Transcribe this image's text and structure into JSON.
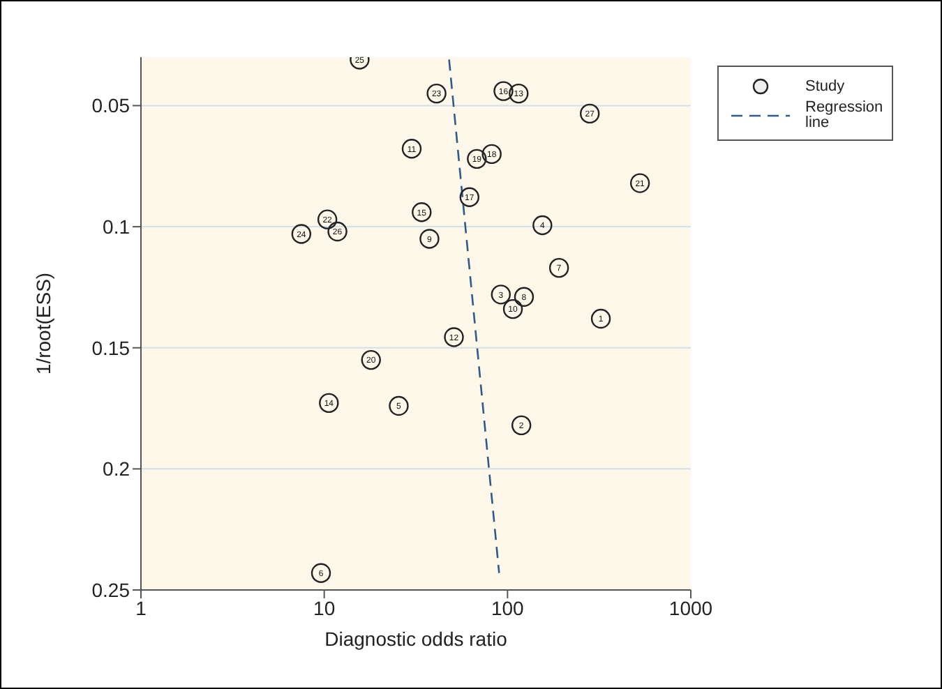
{
  "chart_data": {
    "type": "scatter",
    "xlabel": "Diagnostic odds ratio",
    "ylabel": "1/root(ESS)",
    "log": "x",
    "xlim": [
      1,
      1000
    ],
    "xticks": [
      1,
      10,
      100,
      1000
    ],
    "ylim": [
      0.25,
      0.03
    ],
    "yticks": [
      0.05,
      0.1,
      0.15,
      0.2,
      0.25
    ],
    "grid": "y",
    "legend": "top right",
    "marker": "circle",
    "series": [
      {
        "name": "Study",
        "color": "#222222",
        "x": [
          323,
          119,
          92,
          155,
          25.5,
          9.6,
          191,
          123,
          37.5,
          107,
          30,
          51,
          115,
          10.6,
          34,
          95,
          62,
          82,
          68,
          18,
          528,
          10.4,
          41,
          7.5,
          15.6,
          11.8,
          281
        ],
        "values": [
          0.138,
          0.182,
          0.128,
          0.0994,
          0.174,
          0.243,
          0.117,
          0.129,
          0.105,
          0.134,
          0.0678,
          0.1456,
          0.045,
          0.1728,
          0.094,
          0.044,
          0.0878,
          0.07,
          0.072,
          0.155,
          0.082,
          0.097,
          0.045,
          0.103,
          0.031,
          0.102,
          0.0533
        ]
      },
      {
        "name": "Regression line",
        "type": "line",
        "color": "#2e5b8a",
        "line_style": "dashed",
        "marker": "none",
        "x": [
          48,
          90
        ],
        "values": [
          0.031,
          0.243
        ]
      }
    ],
    "annotations": [
      {
        "text": "1",
        "x": 323,
        "y": 0.138
      },
      {
        "text": "2",
        "x": 119,
        "y": 0.182
      },
      {
        "text": "3",
        "x": 92,
        "y": 0.128
      },
      {
        "text": "4",
        "x": 155,
        "y": 0.0994
      },
      {
        "text": "5",
        "x": 25.5,
        "y": 0.174
      },
      {
        "text": "6",
        "x": 9.6,
        "y": 0.243
      },
      {
        "text": "7",
        "x": 191,
        "y": 0.117
      },
      {
        "text": "8",
        "x": 123,
        "y": 0.129
      },
      {
        "text": "9",
        "x": 37.5,
        "y": 0.105
      },
      {
        "text": "10",
        "x": 107,
        "y": 0.134
      },
      {
        "text": "11",
        "x": 30,
        "y": 0.0678
      },
      {
        "text": "12",
        "x": 51,
        "y": 0.1456
      },
      {
        "text": "13",
        "x": 115,
        "y": 0.045
      },
      {
        "text": "14",
        "x": 10.6,
        "y": 0.1728
      },
      {
        "text": "15",
        "x": 34,
        "y": 0.094
      },
      {
        "text": "16",
        "x": 95,
        "y": 0.044
      },
      {
        "text": "17",
        "x": 62,
        "y": 0.0878
      },
      {
        "text": "18",
        "x": 82,
        "y": 0.07
      },
      {
        "text": "19",
        "x": 68,
        "y": 0.072
      },
      {
        "text": "20",
        "x": 18,
        "y": 0.155
      },
      {
        "text": "21",
        "x": 528,
        "y": 0.082
      },
      {
        "text": "22",
        "x": 10.4,
        "y": 0.097
      },
      {
        "text": "23",
        "x": 41,
        "y": 0.045
      },
      {
        "text": "24",
        "x": 7.5,
        "y": 0.103
      },
      {
        "text": "25",
        "x": 15.6,
        "y": 0.031
      },
      {
        "text": "26",
        "x": 11.8,
        "y": 0.102
      },
      {
        "text": "27",
        "x": 281,
        "y": 0.0533
      }
    ]
  }
}
